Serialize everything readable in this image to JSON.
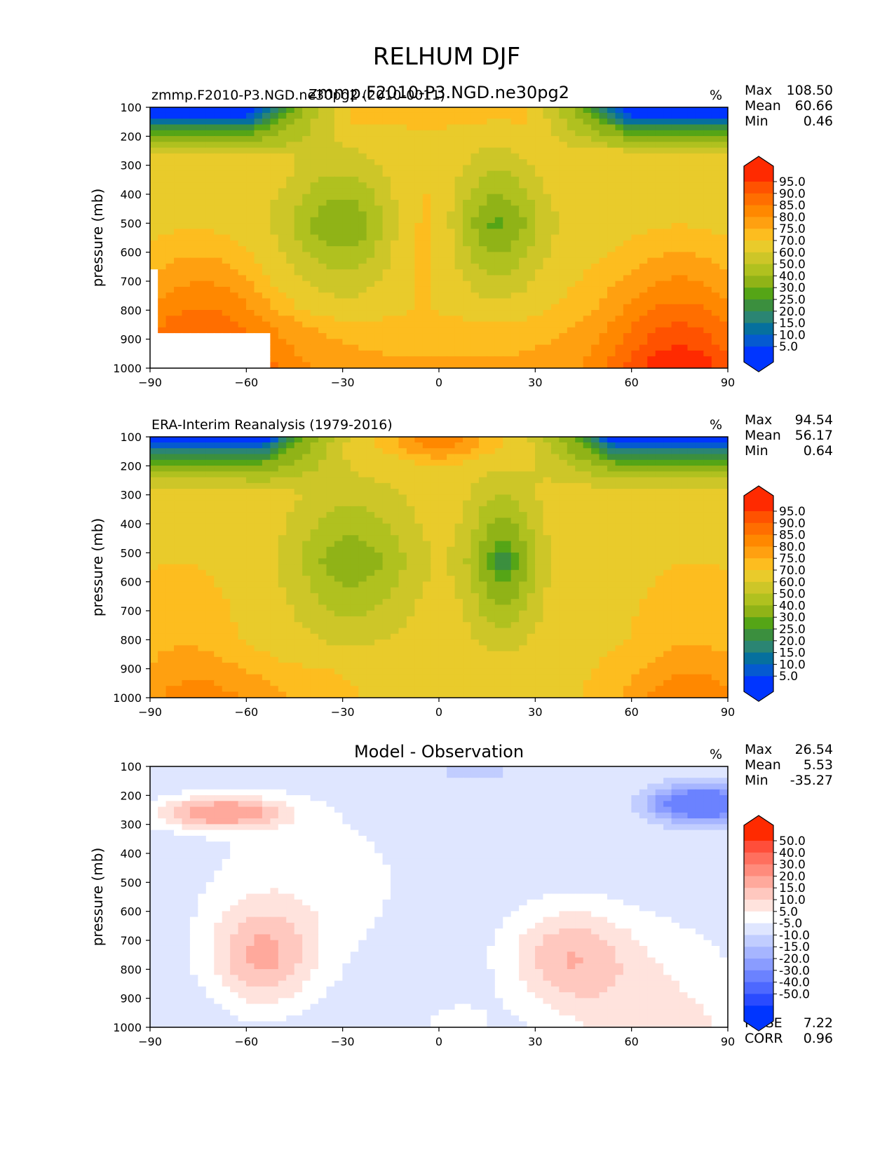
{
  "figure": {
    "title": "RELHUM DJF"
  },
  "axes_common": {
    "xticks": [
      "−90",
      "−60",
      "−30",
      "0",
      "30",
      "60",
      "90"
    ],
    "yticks": [
      "100",
      "200",
      "300",
      "400",
      "500",
      "600",
      "700",
      "800",
      "900",
      "1000"
    ],
    "ylabel": "pressure (mb)",
    "units": "%"
  },
  "chart_data": [
    {
      "type": "heatmap",
      "panel": "test",
      "title_left": "zmmp.F2010-P3.NGD.ne30pg2 (2010-0011)",
      "title_center": "zmmp.F2010-P3.NGD.ne30pg2",
      "units": "%",
      "xlabel": "",
      "ylabel": "pressure (mb)",
      "xlim": [
        -90,
        90
      ],
      "ylim": [
        1000,
        100
      ],
      "stats": [
        {
          "label": "Max",
          "value": "108.50"
        },
        {
          "label": "Mean",
          "value": "60.66"
        },
        {
          "label": "Min",
          "value": "0.46"
        }
      ],
      "colorbar_levels": [
        "95.0",
        "90.0",
        "85.0",
        "80.0",
        "75.0",
        "70.0",
        "60.0",
        "50.0",
        "40.0",
        "30.0",
        "25.0",
        "20.0",
        "15.0",
        "10.0",
        "5.0"
      ]
    },
    {
      "type": "heatmap",
      "panel": "reference",
      "title_left": "ERA-Interim Reanalysis (1979-2016)",
      "title_center": "",
      "units": "%",
      "xlabel": "",
      "ylabel": "pressure (mb)",
      "xlim": [
        -90,
        90
      ],
      "ylim": [
        1000,
        100
      ],
      "stats": [
        {
          "label": "Max",
          "value": "94.54"
        },
        {
          "label": "Mean",
          "value": "56.17"
        },
        {
          "label": "Min",
          "value": "0.64"
        }
      ],
      "colorbar_levels": [
        "95.0",
        "90.0",
        "85.0",
        "80.0",
        "75.0",
        "70.0",
        "60.0",
        "50.0",
        "40.0",
        "30.0",
        "25.0",
        "20.0",
        "15.0",
        "10.0",
        "5.0"
      ]
    },
    {
      "type": "heatmap",
      "panel": "difference",
      "title_left": "",
      "title_center": "Model - Observation",
      "units": "%",
      "xlabel": "",
      "ylabel": "pressure (mb)",
      "xlim": [
        -90,
        90
      ],
      "ylim": [
        1000,
        100
      ],
      "stats": [
        {
          "label": "Max",
          "value": "26.54"
        },
        {
          "label": "Mean",
          "value": "5.53"
        },
        {
          "label": "Min",
          "value": "-35.27"
        }
      ],
      "extra_stats": [
        {
          "label": "RMSE",
          "value": "7.22"
        },
        {
          "label": "CORR",
          "value": "0.96"
        }
      ],
      "colorbar_levels": [
        "50.0",
        "40.0",
        "30.0",
        "20.0",
        "15.0",
        "10.0",
        "5.0",
        "-5.0",
        "-10.0",
        "-15.0",
        "-20.0",
        "-30.0",
        "-40.0",
        "-50.0"
      ]
    }
  ],
  "colors": {
    "rh_palette": [
      "#ff2a00",
      "#ff5200",
      "#ff6e00",
      "#ff8800",
      "#ffa010",
      "#fdbd1f",
      "#e9cb2b",
      "#cdc628",
      "#b0c11f",
      "#90b317",
      "#55a516",
      "#3b8f3e",
      "#2b8573",
      "#06709e",
      "#055ad0",
      "#0035ff"
    ],
    "diff_palette": [
      "#ff2a00",
      "#ff4e3a",
      "#ff6f5e",
      "#ff8b7c",
      "#ffa99c",
      "#ffc8bf",
      "#ffe3dd",
      "#ffffff",
      "#dfe6ff",
      "#c1cdff",
      "#a6b5ff",
      "#8a9cff",
      "#6b82ff",
      "#4d68ff",
      "#2a4bff",
      "#0035ff"
    ]
  }
}
